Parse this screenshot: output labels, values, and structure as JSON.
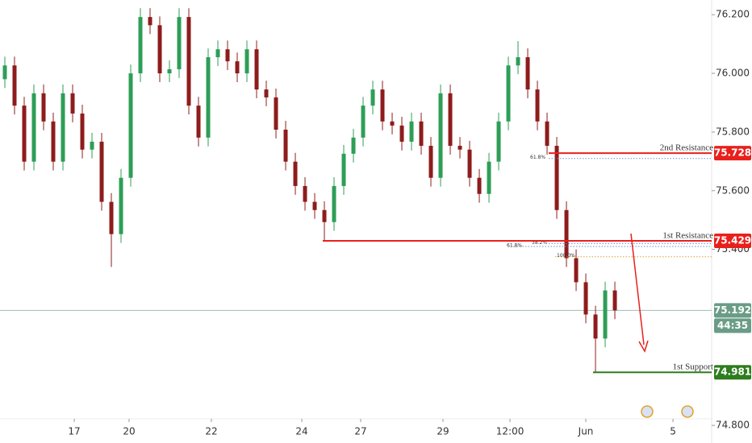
{
  "chart_data": {
    "type": "candlestick",
    "up_color": "#2e9e57",
    "down_color": "#8e1c1c",
    "xlim": [
      -0.5,
      72.83
    ],
    "ylim": [
      74.74,
      76.25
    ],
    "xticks": [
      {
        "value": 7.17,
        "label": "17"
      },
      {
        "value": 12.83,
        "label": "20"
      },
      {
        "value": 21.33,
        "label": "22"
      },
      {
        "value": 30.67,
        "label": "24"
      },
      {
        "value": 36.75,
        "label": "27"
      },
      {
        "value": 45.25,
        "label": "29"
      },
      {
        "value": 52.17,
        "label": "12:00"
      },
      {
        "value": 60,
        "label": "Jun"
      },
      {
        "value": 69,
        "label": "5"
      }
    ],
    "yticks": [
      {
        "value": 76.2,
        "label": "76.200"
      },
      {
        "value": 76.0,
        "label": "76.000"
      },
      {
        "value": 75.8,
        "label": "75.800"
      },
      {
        "value": 75.6,
        "label": "75.600"
      },
      {
        "value": 75.4,
        "label": "75.400"
      },
      {
        "value": 74.8,
        "label": "74.800"
      }
    ],
    "open": [
      75.98,
      76.027,
      75.89,
      75.699,
      75.932,
      75.836,
      75.699,
      75.932,
      75.863,
      75.74,
      75.767,
      75.562,
      75.452,
      75.644,
      76.0,
      76.192,
      76.164,
      76.0,
      76.014,
      76.192,
      75.89,
      75.781,
      76.055,
      76.082,
      76.041,
      76.0,
      76.082,
      75.945,
      75.918,
      75.808,
      75.699,
      75.616,
      75.562,
      75.534,
      75.493,
      75.616,
      75.726,
      75.781,
      75.89,
      75.945,
      75.836,
      75.822,
      75.767,
      75.836,
      75.753,
      75.644,
      75.932,
      75.753,
      75.74,
      75.644,
      75.589,
      75.699,
      75.836,
      76.027,
      76.055,
      75.945,
      75.836,
      75.753,
      75.534,
      75.37,
      75.288,
      75.178,
      75.096,
      75.26
    ],
    "high": [
      76.057,
      76.057,
      75.92,
      75.962,
      75.962,
      75.866,
      75.962,
      75.962,
      75.893,
      75.797,
      75.797,
      75.592,
      75.674,
      76.03,
      76.222,
      76.222,
      76.194,
      76.044,
      76.222,
      76.222,
      75.92,
      76.085,
      76.112,
      76.112,
      76.071,
      76.112,
      76.112,
      75.975,
      75.948,
      75.838,
      75.729,
      75.646,
      75.592,
      75.564,
      75.646,
      75.756,
      75.811,
      75.92,
      75.975,
      75.975,
      75.866,
      75.852,
      75.866,
      75.866,
      75.783,
      75.962,
      75.962,
      75.783,
      75.77,
      75.674,
      75.729,
      75.866,
      76.057,
      76.11,
      76.085,
      75.975,
      75.866,
      75.783,
      75.564,
      75.4,
      75.318,
      75.208,
      75.29,
      75.29
    ],
    "low": [
      75.95,
      75.86,
      75.669,
      75.669,
      75.806,
      75.669,
      75.669,
      75.833,
      75.71,
      75.71,
      75.532,
      75.34,
      75.422,
      75.614,
      75.97,
      76.134,
      75.97,
      75.97,
      75.984,
      75.86,
      75.751,
      75.751,
      76.025,
      76.011,
      75.97,
      75.97,
      75.915,
      75.888,
      75.778,
      75.669,
      75.586,
      75.532,
      75.504,
      75.429,
      75.463,
      75.586,
      75.696,
      75.751,
      75.86,
      75.806,
      75.792,
      75.737,
      75.737,
      75.723,
      75.614,
      75.614,
      75.723,
      75.71,
      75.614,
      75.559,
      75.559,
      75.669,
      75.806,
      75.997,
      75.915,
      75.806,
      75.723,
      75.504,
      75.34,
      75.258,
      75.148,
      74.981,
      75.066,
      75.162
    ],
    "close": [
      76.027,
      75.89,
      75.699,
      75.932,
      75.836,
      75.699,
      75.932,
      75.863,
      75.74,
      75.767,
      75.562,
      75.452,
      75.644,
      76.0,
      76.192,
      76.164,
      76.0,
      76.014,
      76.192,
      75.89,
      75.781,
      76.055,
      76.082,
      76.041,
      76.0,
      76.082,
      75.945,
      75.918,
      75.808,
      75.699,
      75.616,
      75.562,
      75.534,
      75.493,
      75.616,
      75.726,
      75.781,
      75.89,
      75.945,
      75.836,
      75.822,
      75.767,
      75.836,
      75.753,
      75.644,
      75.932,
      75.753,
      75.74,
      75.644,
      75.589,
      75.699,
      75.836,
      76.027,
      76.055,
      75.945,
      75.836,
      75.753,
      75.534,
      75.37,
      75.288,
      75.178,
      75.096,
      75.26,
      75.192
    ],
    "levels": [
      {
        "name": "2nd Resistance",
        "value": 75.728,
        "label": "75.728",
        "color": "#e8201c"
      },
      {
        "name": "1st Resistance",
        "value": 75.429,
        "label": "75.429",
        "color": "#e8201c"
      },
      {
        "name": "1st Support",
        "value": 74.981,
        "label": "74.981",
        "color": "#2e7d1e"
      }
    ],
    "fib_lines": [
      {
        "label": "61.8%",
        "value": 75.71,
        "color": "#6a8fd0"
      },
      {
        "label": "61.8%",
        "value": 75.41,
        "color": "#6a8fd0"
      },
      {
        "label": "38.2%",
        "value": 75.42,
        "color": "#6a8fd0"
      },
      {
        "label": "100.0%",
        "value": 75.375,
        "color": "#e0a030"
      }
    ],
    "current_price": {
      "value": 75.192,
      "label": "75.192"
    },
    "countdown": "44:35"
  }
}
